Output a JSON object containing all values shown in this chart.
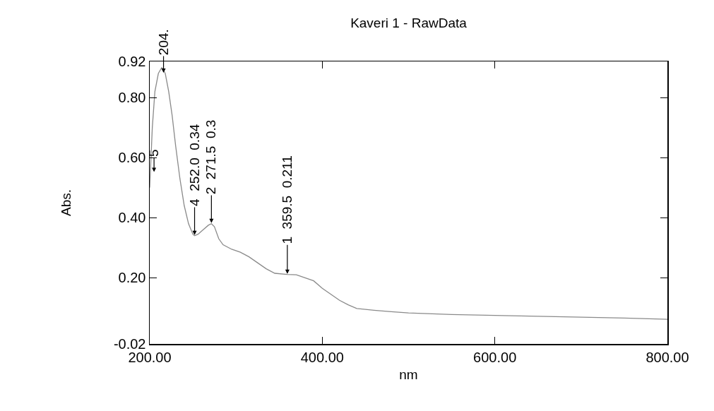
{
  "chart_data": {
    "type": "line",
    "title": "Kaveri 1 - RawData",
    "xlabel": "nm",
    "ylabel": "Abs.",
    "x": [
      200,
      203,
      206,
      210,
      214,
      218,
      222,
      226,
      230,
      235,
      240,
      245,
      250,
      252,
      256,
      262,
      268,
      271.5,
      275,
      280,
      285,
      295,
      305,
      315,
      325,
      335,
      345,
      359.5,
      370,
      380,
      390,
      400,
      410,
      420,
      430,
      440,
      460,
      480,
      500,
      550,
      600,
      650,
      700,
      750,
      800
    ],
    "series": [
      {
        "color": "#8a8a8a",
        "values": [
          0.5,
          0.7,
          0.82,
          0.88,
          0.9,
          0.88,
          0.82,
          0.74,
          0.64,
          0.53,
          0.44,
          0.38,
          0.345,
          0.34,
          0.345,
          0.36,
          0.375,
          0.38,
          0.37,
          0.33,
          0.31,
          0.295,
          0.285,
          0.27,
          0.25,
          0.23,
          0.215,
          0.211,
          0.21,
          0.2,
          0.19,
          0.165,
          0.145,
          0.125,
          0.11,
          0.098,
          0.092,
          0.087,
          0.083,
          0.078,
          0.075,
          0.072,
          0.069,
          0.066,
          0.062
        ]
      }
    ],
    "xlim": [
      200,
      800
    ],
    "ylim": [
      -0.02,
      0.92
    ],
    "xticks": [
      {
        "value": 200,
        "label": "200.00"
      },
      {
        "value": 400,
        "label": "400.00"
      },
      {
        "value": 600,
        "label": "600.00"
      },
      {
        "value": 800,
        "label": "800.00"
      }
    ],
    "yticks": [
      {
        "value": -0.02,
        "label": "-0.02"
      },
      {
        "value": 0.2,
        "label": "0.20"
      },
      {
        "value": 0.4,
        "label": "0.40"
      },
      {
        "value": 0.6,
        "label": "0.60"
      },
      {
        "value": 0.8,
        "label": "0.80"
      },
      {
        "value": 0.92,
        "label": "0.92"
      }
    ],
    "grid": false,
    "legend": false,
    "marker": "none",
    "line_style": "solid",
    "annotations": [
      {
        "text": "1  359.5  0.211",
        "x": 359.5,
        "y": 0.211
      },
      {
        "text": "2  271.5  0.3",
        "x": 271.5,
        "y": 0.38
      },
      {
        "text": "4  252.0  0.34",
        "x": 252,
        "y": 0.34
      },
      {
        "text": "204.",
        "x": 216,
        "y": 0.88
      },
      {
        "text": "5",
        "x": 205,
        "y": 0.55
      }
    ]
  }
}
